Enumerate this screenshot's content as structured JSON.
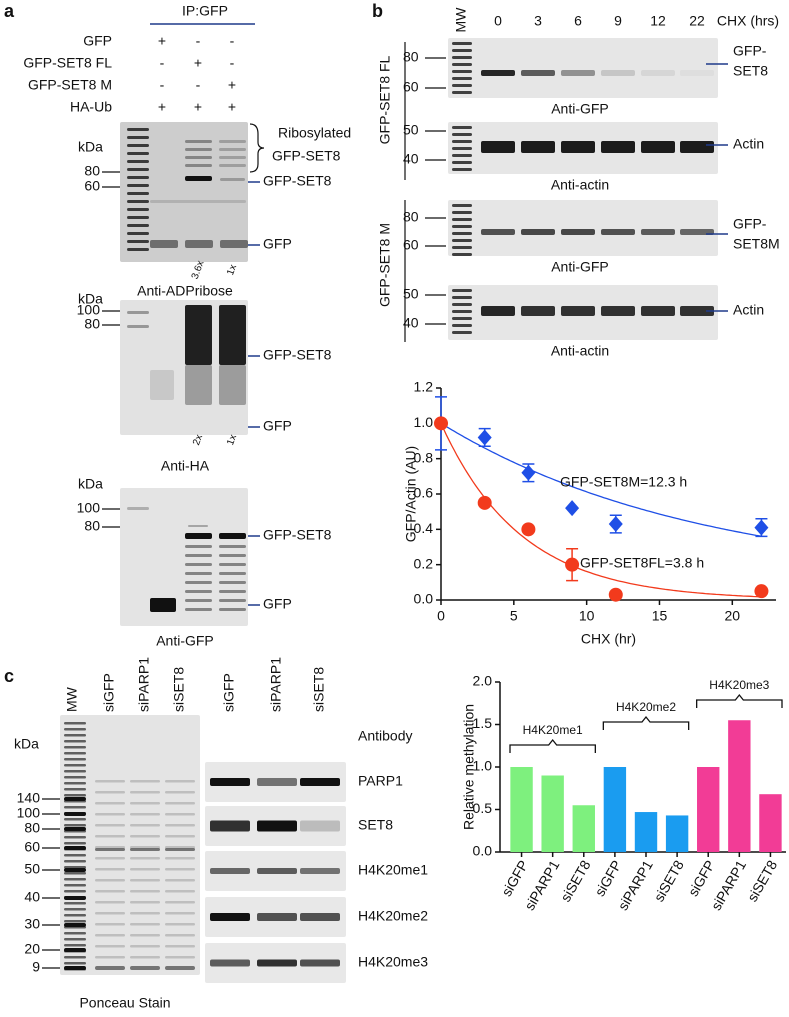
{
  "panel_a": {
    "label": "a",
    "header": "IP:GFP",
    "rows": [
      {
        "name": "GFP",
        "marks": [
          "+",
          "-",
          "-"
        ]
      },
      {
        "name": "GFP-SET8 FL",
        "marks": [
          "-",
          "+",
          "-"
        ]
      },
      {
        "name": "GFP-SET8 M",
        "marks": [
          "-",
          "-",
          "+"
        ]
      },
      {
        "name": "HA-Ub",
        "marks": [
          "+",
          "+",
          "+"
        ]
      }
    ],
    "blots": [
      {
        "unit": "kDa",
        "markers": [
          "80",
          "60"
        ],
        "labels": [
          "GFP-SET8",
          "GFP"
        ],
        "bracket_label": [
          "Ribosylated",
          "GFP-SET8"
        ],
        "quant": [
          "3.6x",
          "1x"
        ],
        "caption": "Anti-ADPribose"
      },
      {
        "unit": "kDa",
        "markers": [
          "100",
          "80"
        ],
        "labels": [
          "GFP-SET8",
          "GFP"
        ],
        "quant": [
          "2x",
          "1x"
        ],
        "caption": "Anti-HA"
      },
      {
        "unit": "kDa",
        "markers": [
          "100",
          "80"
        ],
        "labels": [
          "GFP-SET8",
          "GFP"
        ],
        "caption": "Anti-GFP"
      }
    ]
  },
  "panel_b": {
    "label": "b",
    "ladder": "MW",
    "times": [
      "0",
      "3",
      "6",
      "9",
      "12",
      "22"
    ],
    "time_unit": "CHX (hrs)",
    "groups": [
      "GFP-SET8 FL",
      "GFP-SET8 M"
    ],
    "blots": [
      {
        "markers": [
          "80",
          "60"
        ],
        "label": [
          "GFP-",
          "SET8"
        ],
        "caption": "Anti-GFP"
      },
      {
        "markers": [
          "50",
          "40"
        ],
        "label": [
          "Actin"
        ],
        "caption": "Anti-actin"
      },
      {
        "markers": [
          "80",
          "60"
        ],
        "label": [
          "GFP-",
          "SET8M"
        ],
        "caption": "Anti-GFP"
      },
      {
        "markers": [
          "50",
          "40"
        ],
        "label": [
          "Actin"
        ],
        "caption": "Anti-actin"
      }
    ]
  },
  "panel_c": {
    "label": "c",
    "ladder": "MW",
    "lanes": [
      "siGFP",
      "siPARP1",
      "siSET8"
    ],
    "unit": "kDa",
    "markers": [
      "140",
      "100",
      "80",
      "60",
      "50",
      "40",
      "30",
      "20",
      "9"
    ],
    "ponceau_caption": "Ponceau Stain",
    "antibody_header": "Antibody",
    "antibodies": [
      "PARP1",
      "SET8",
      "H4K20me1",
      "H4K20me2",
      "H4K20me3"
    ]
  },
  "chart_data": [
    {
      "type": "scatter",
      "x_label": "CHX (hr)",
      "y_label": "GFP/Actin (AU)",
      "x": [
        0,
        3,
        6,
        9,
        12,
        22
      ],
      "series": [
        {
          "name": "GFP-SET8M=12.3 h",
          "color": "#1f4fe6",
          "marker": "diamond",
          "values": [
            1.0,
            0.92,
            0.72,
            0.52,
            0.43,
            0.41
          ],
          "errors": [
            0.15,
            0.05,
            0.05,
            0,
            0.05,
            0.05
          ],
          "half_life": 12.3,
          "plateau": 0.1
        },
        {
          "name": "GFP-SET8FL=3.8 h",
          "color": "#f23a1c",
          "marker": "circle",
          "values": [
            1.0,
            0.55,
            0.4,
            0.2,
            0.03,
            0.05
          ],
          "errors": [
            0,
            0,
            0,
            0.09,
            0,
            0
          ],
          "half_life": 3.8,
          "plateau": 0
        }
      ],
      "xlim": [
        0,
        23
      ],
      "xticks": [
        0,
        5,
        10,
        15,
        20
      ],
      "ylim": [
        0,
        1.2
      ],
      "yticks": [
        {
          "value": 0,
          "label": "0.0"
        },
        0.2,
        0.4,
        0.6,
        0.8,
        {
          "value": 1,
          "label": "1.0"
        },
        1.2
      ]
    },
    {
      "type": "bar",
      "y_label": "Relative methylation",
      "categories": [
        "siGFP",
        "siPARP1",
        "siSET8"
      ],
      "series": [
        {
          "name": "H4K20me1",
          "color": "#7ef07e",
          "values": [
            1.0,
            0.9,
            0.55
          ]
        },
        {
          "name": "H4K20me2",
          "color": "#1a9cf0",
          "values": [
            1.0,
            0.47,
            0.43
          ]
        },
        {
          "name": "H4K20me3",
          "color": "#f23c96",
          "values": [
            1.0,
            1.55,
            0.68
          ]
        }
      ],
      "ylim": [
        0,
        2
      ],
      "yticks": [
        {
          "value": 0,
          "label": "0.0"
        },
        0.5,
        {
          "value": 1,
          "label": "1.0"
        },
        1.5,
        {
          "value": 2,
          "label": "2.0"
        }
      ]
    }
  ]
}
